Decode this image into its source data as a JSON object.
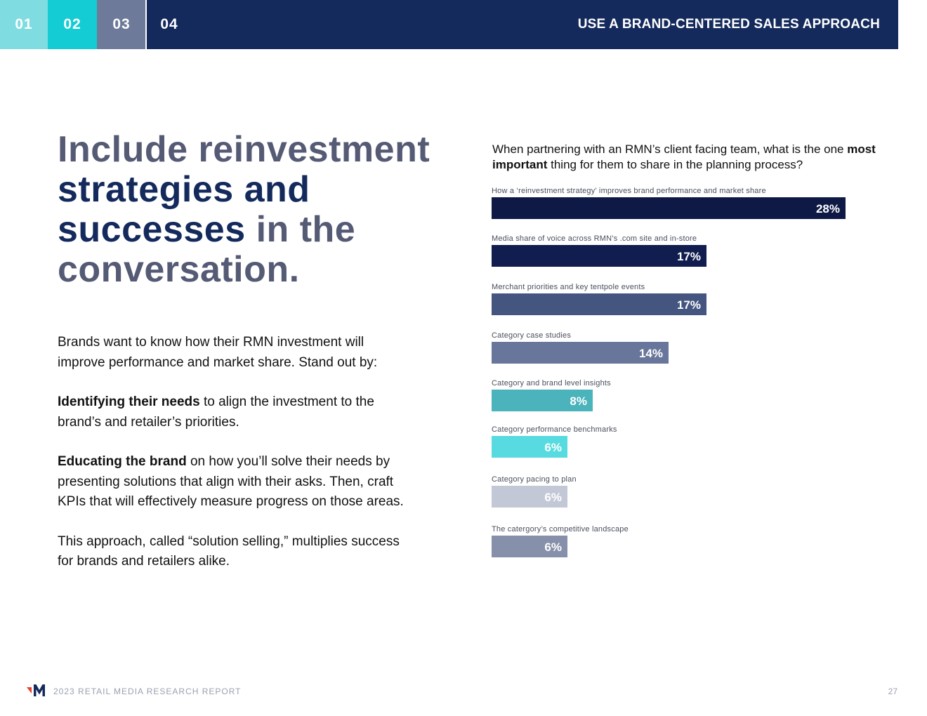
{
  "header": {
    "tabs": [
      "01",
      "02",
      "03",
      "04"
    ],
    "tab_colors": [
      "#7fdce0",
      "#14ccd4",
      "#6e7a99",
      "#142a5c"
    ],
    "title": "USE A BRAND-CENTERED SALES APPROACH"
  },
  "headline": {
    "part1": "Include reinvestment",
    "part2": "strategies and",
    "part3": "successes",
    "part4": " in the",
    "part5": "conversation."
  },
  "body": {
    "p1": "Brands want to know how their RMN investment will improve performance and market share. Stand out by:",
    "p2_bold": "Identifying their needs",
    "p2_rest": " to align the investment to the brand’s and retailer’s priorities.",
    "p3_bold": "Educating the brand",
    "p3_rest": " on how you’ll solve their needs by presenting solutions that align with their asks. Then, craft KPIs that will effectively measure progress on those areas.",
    "p4": "This approach, called “solution selling,” multiplies success for brands and retailers alike."
  },
  "question": {
    "part1": "When partnering with an RMN’s client facing team, what is the one ",
    "bold": "most important",
    "part2": " thing for them to share in the planning process?"
  },
  "chart_data": {
    "type": "bar",
    "orientation": "horizontal",
    "categories": [
      "How a ‘reinvestment strategy’ improves brand performance and market share",
      "Media share of voice across RMN’s .com site and in-store",
      "Merchant priorities and key tentpole events",
      "Category case studies",
      "Category and brand level insights",
      "Category performance benchmarks",
      "Category pacing to plan",
      "The catergory’s competitive landscape"
    ],
    "values": [
      28,
      17,
      17,
      14,
      8,
      6,
      6,
      6
    ],
    "value_labels": [
      "28%",
      "17%",
      "17%",
      "14%",
      "8%",
      "6%",
      "6%",
      "6%"
    ],
    "colors": [
      "#0e1a45",
      "#101d4e",
      "#44557f",
      "#69769b",
      "#4ab3bc",
      "#58dbe0",
      "#c2c8d6",
      "#8690aa"
    ],
    "grid": false,
    "legend": "none"
  },
  "footer": {
    "report": "2023 RETAIL MEDIA RESEARCH REPORT",
    "page": "27",
    "logo_colors": [
      "#e8412c",
      "#142a5c"
    ]
  }
}
